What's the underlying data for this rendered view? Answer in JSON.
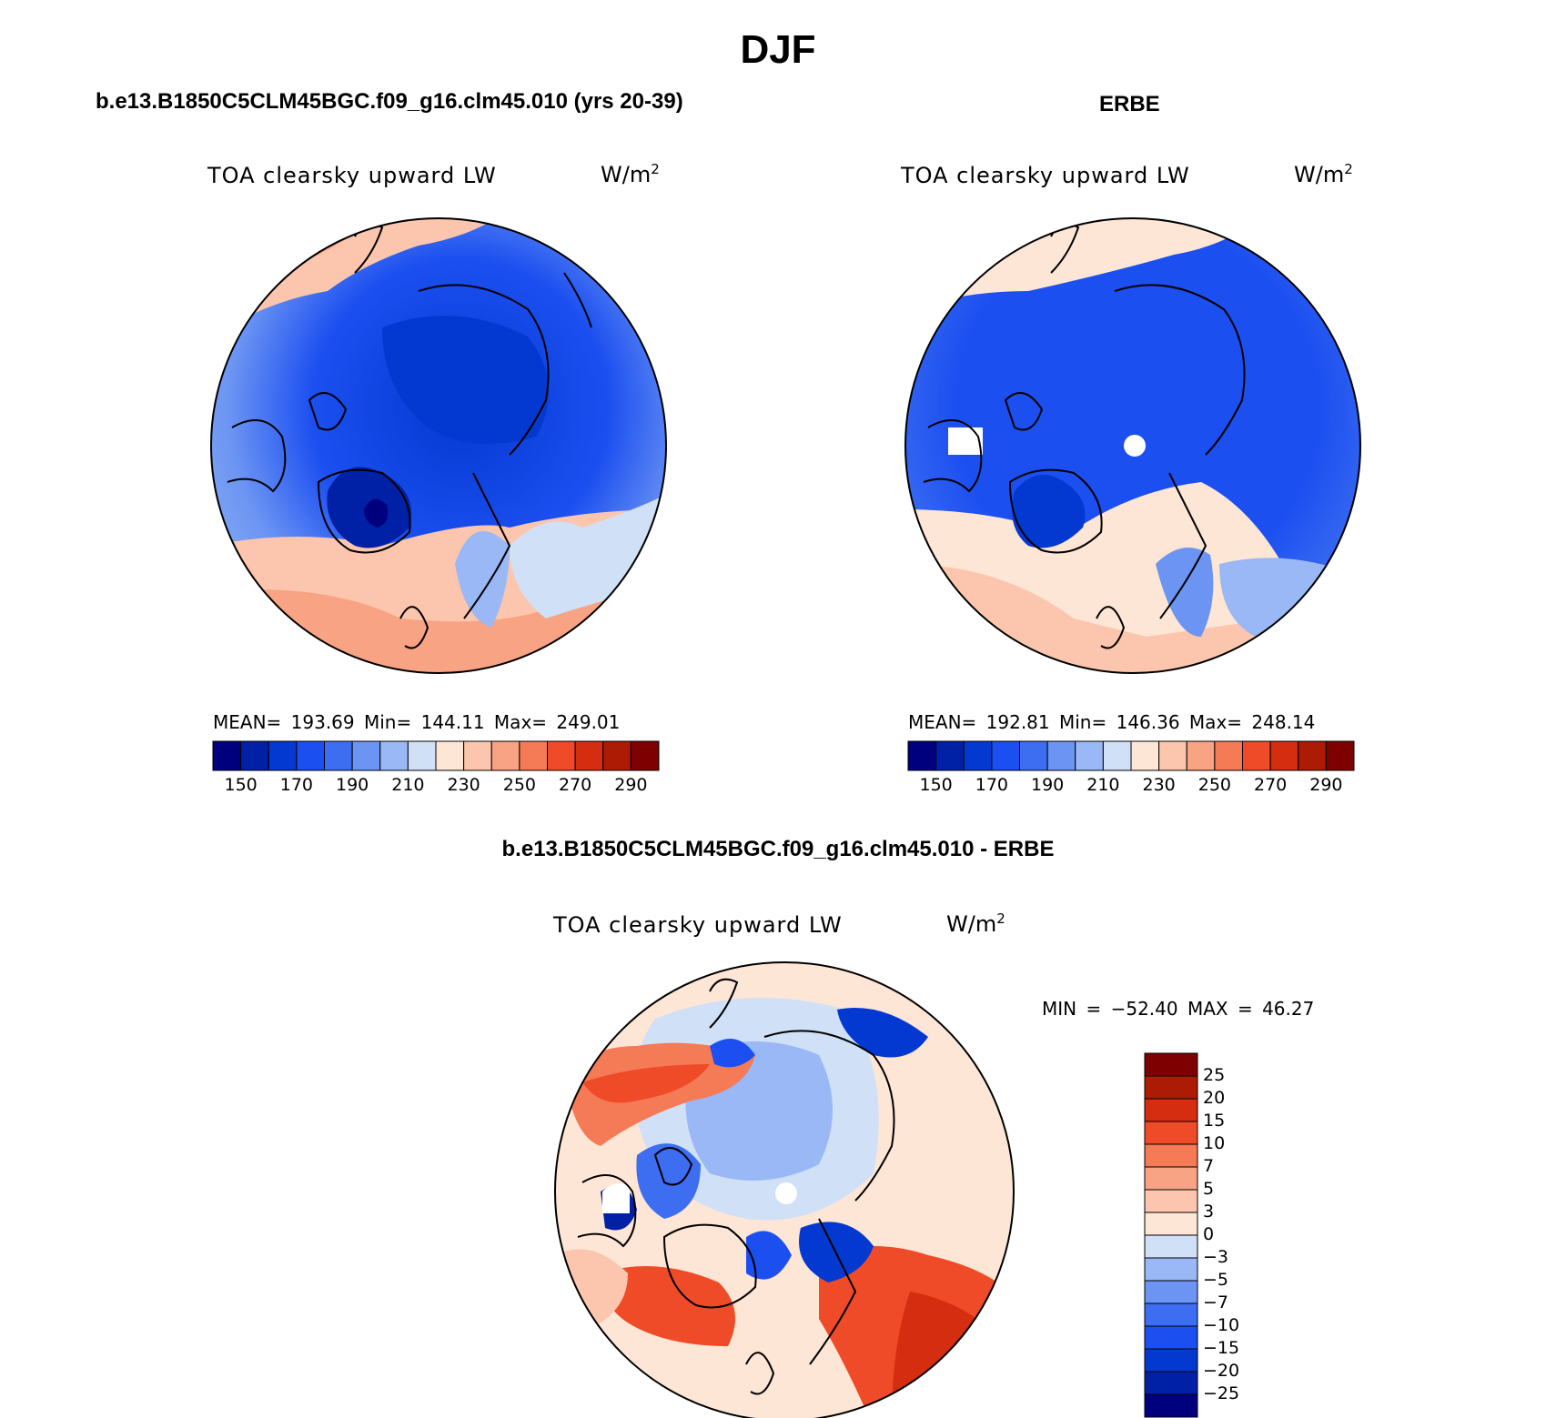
{
  "page": {
    "title": "DJF"
  },
  "panels": [
    {
      "id": "model",
      "title": "b.e13.B1850C5CLM45BGC.f09_g16.clm45.010 (yrs 20-39)",
      "variable": "TOA clearsky upward LW",
      "units_base": "W/m",
      "units_exp": "2",
      "stats": "MEAN= 193.69   Min= 144.11   Max= 249.01"
    },
    {
      "id": "obs",
      "title": "ERBE",
      "variable": "TOA clearsky upward LW",
      "units_base": "W/m",
      "units_exp": "2",
      "stats": "MEAN= 192.81   Min= 146.36   Max= 248.14"
    },
    {
      "id": "diff",
      "title": "b.e13.B1850C5CLM45BGC.f09_g16.clm45.010 - ERBE",
      "variable": "TOA clearsky upward LW",
      "units_base": "W/m",
      "units_exp": "2",
      "stats": "MIN = −52.40 MAX =  46.27"
    }
  ],
  "colorbar_main": {
    "colors": [
      "#00007f",
      "#0021a6",
      "#0339d1",
      "#1c4ff0",
      "#3d6ef2",
      "#6c95f3",
      "#99b8f5",
      "#cfe0f7",
      "#fde6d6",
      "#fbc6ad",
      "#f8a383",
      "#f57a56",
      "#f04b28",
      "#d42d10",
      "#ad1b05",
      "#7f0000"
    ],
    "tick_labels": [
      "150",
      "170",
      "190",
      "210",
      "230",
      "250",
      "270",
      "290"
    ]
  },
  "colorbar_diff": {
    "colors": [
      "#7f0000",
      "#ad1b05",
      "#d42d10",
      "#f04b28",
      "#f57a56",
      "#f8a383",
      "#fbc6ad",
      "#fde6d6",
      "#cfe0f7",
      "#99b8f5",
      "#6c95f3",
      "#3d6ef2",
      "#1c4ff0",
      "#0339d1",
      "#0021a6",
      "#00007f"
    ],
    "tick_labels": [
      "25",
      "20",
      "15",
      "10",
      "7",
      "5",
      "3",
      "0",
      "−3",
      "−5",
      "−7",
      "−10",
      "−15",
      "−20",
      "−25"
    ]
  }
}
